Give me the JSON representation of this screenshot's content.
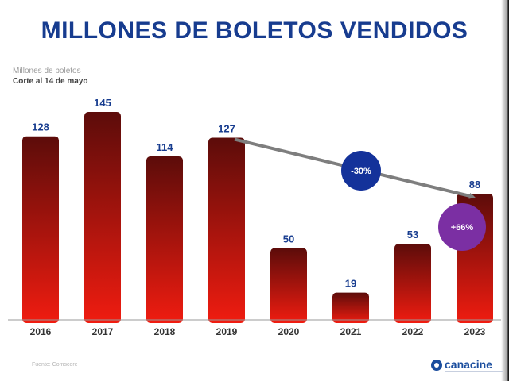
{
  "chart_data": {
    "type": "bar",
    "title": "MILLONES DE BOLETOS VENDIDOS",
    "subtitle": "Millones de boletos",
    "note": "Corte al 14 de mayo",
    "categories": [
      "2016",
      "2017",
      "2018",
      "2019",
      "2020",
      "2021",
      "2022",
      "2023"
    ],
    "values": [
      128,
      145,
      114,
      127,
      50,
      19,
      53,
      88
    ],
    "annotations": [
      {
        "text": "-30%",
        "from": "2019",
        "to": "2023",
        "color": "#14329a"
      },
      {
        "text": "+66%",
        "from": "2022",
        "to": "2023",
        "color": "#7b2fa3"
      }
    ],
    "grid": false,
    "legend": "none",
    "colors": {
      "bar_top": "#5c0c0a",
      "bar_bottom": "#f01c10",
      "label": "#173c8f",
      "arrow": "#7e7e7e"
    }
  },
  "source": "Fuente: Comscore",
  "logo": {
    "name": "canacine"
  }
}
